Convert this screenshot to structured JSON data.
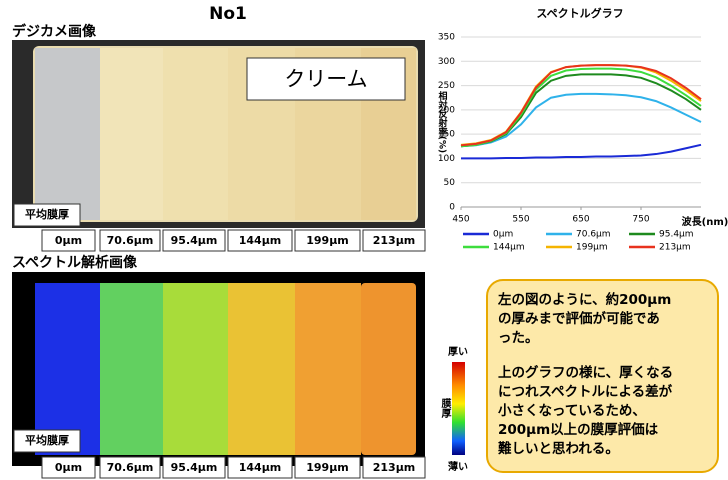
{
  "title": "No1",
  "photo_label": "デジカメ画像",
  "cream_label": "クリーム",
  "thickness_label": "平均膜厚",
  "analysis_label": "スペクトル解析画像",
  "colorbar": {
    "top": "厚い",
    "middle": "膜厚",
    "bottom": "薄い"
  },
  "note": {
    "paragraphs": [
      [
        "左の図のように、約200μm",
        "の厚みまで評価が可能であ",
        "った。"
      ],
      [
        "上のグラフの様に、厚くなる",
        "につれスペクトルによる差が",
        "小さくなっているため、",
        "200μm以上の膜厚評価は",
        "難しいと思われる。"
      ]
    ]
  },
  "chart_data": {
    "type": "line",
    "title": "スペクトルグラフ",
    "x_label": "波長(nm)",
    "y_label": "相対反射率(%)",
    "x": [
      450,
      475,
      500,
      525,
      550,
      575,
      600,
      625,
      650,
      675,
      700,
      725,
      750,
      775,
      800,
      825,
      850
    ],
    "xlim": [
      450,
      850
    ],
    "xticks": [
      450,
      550,
      650,
      750
    ],
    "ylim": [
      0,
      350
    ],
    "yticks": [
      0,
      50,
      100,
      150,
      200,
      250,
      300,
      350
    ],
    "grid": true,
    "series": [
      {
        "name": "0μm",
        "color": "#1a2ad6",
        "values": [
          100,
          100,
          100,
          101,
          101,
          102,
          102,
          103,
          103,
          104,
          104,
          105,
          106,
          109,
          114,
          121,
          128
        ]
      },
      {
        "name": "70.6μm",
        "color": "#2fb2ea",
        "values": [
          125,
          127,
          133,
          145,
          170,
          205,
          225,
          231,
          233,
          233,
          232,
          230,
          226,
          218,
          205,
          190,
          175
        ]
      },
      {
        "name": "95.4μm",
        "color": "#1e8a1e",
        "values": [
          125,
          128,
          135,
          150,
          185,
          235,
          260,
          270,
          273,
          273,
          273,
          271,
          266,
          255,
          240,
          222,
          200
        ]
      },
      {
        "name": "144μm",
        "color": "#3ddd3d",
        "values": [
          125,
          128,
          136,
          152,
          190,
          242,
          270,
          281,
          284,
          285,
          285,
          283,
          278,
          267,
          250,
          230,
          208
        ]
      },
      {
        "name": "199μm",
        "color": "#f5b400",
        "values": [
          128,
          131,
          138,
          155,
          195,
          248,
          278,
          288,
          291,
          292,
          292,
          291,
          287,
          277,
          260,
          240,
          218
        ]
      },
      {
        "name": "213μm",
        "color": "#e8321e",
        "values": [
          127,
          130,
          137,
          154,
          194,
          246,
          277,
          288,
          291,
          292,
          292,
          291,
          288,
          280,
          265,
          245,
          222
        ]
      }
    ]
  }
}
